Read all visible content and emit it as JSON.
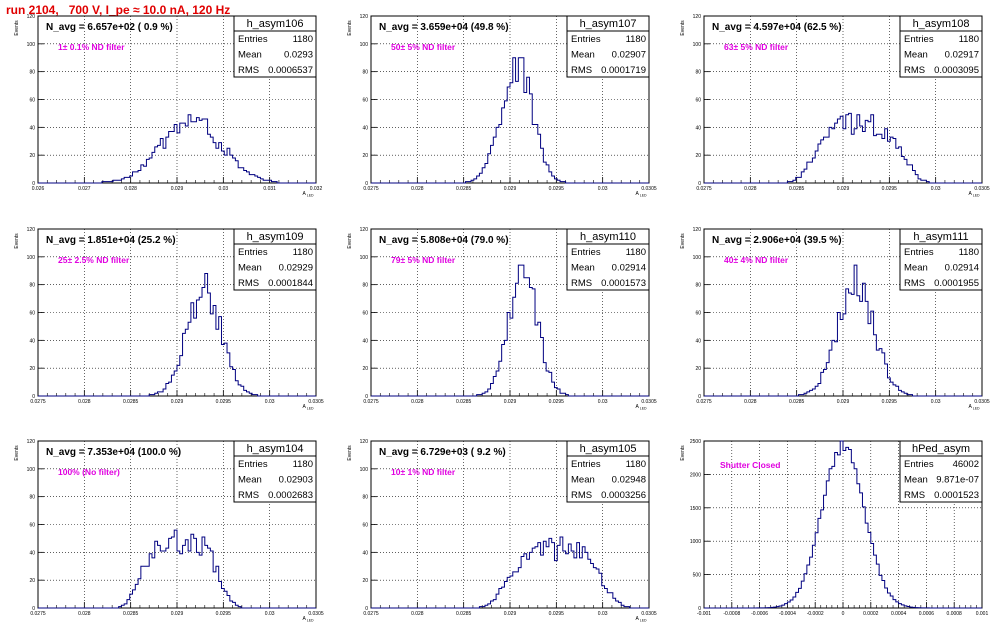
{
  "header": {
    "title": "run 2104,   700 V, I_pe ≈ 10.0 nA, 120 Hz"
  },
  "colors": {
    "title": "#e00000",
    "annotation": "#e000e0",
    "histogram_line": "#000080",
    "grid": "#000000"
  },
  "chart_data": [
    {
      "type": "bar",
      "histogram": true,
      "title": "h_asym106",
      "ylabel": "Events",
      "xlabel": "A_LED",
      "avg_label": "N_avg = 6.657e+02 ( 0.9 %)",
      "filter_label": "1± 0.1% ND filter",
      "stats": {
        "entries": "1180",
        "mean": "0.0293",
        "rms": "0.0006537"
      },
      "xlim": [
        0.026,
        0.032
      ],
      "ylim": [
        0,
        120
      ],
      "xticks": [
        "0.026",
        "0.027",
        "0.028",
        "0.029",
        "0.03",
        "0.031",
        "0.032"
      ],
      "yticks": [
        "0",
        "20",
        "40",
        "60",
        "80",
        "100",
        "120"
      ],
      "dist": {
        "mean": 0.0293,
        "sigma": 0.00065,
        "peak": 45,
        "bins": 100,
        "shape": "broad"
      },
      "legend": "top-right"
    },
    {
      "type": "bar",
      "histogram": true,
      "title": "h_asym107",
      "ylabel": "Events",
      "xlabel": "A_LED",
      "avg_label": "N_avg = 3.659e+04 (49.8 %)",
      "filter_label": "50± 5% ND filter",
      "stats": {
        "entries": "1180",
        "mean": "0.02907",
        "rms": "0.0001719"
      },
      "xlim": [
        0.0275,
        0.0305
      ],
      "ylim": [
        0,
        120
      ],
      "xticks": [
        "0.0275",
        "0.028",
        "0.0285",
        "0.029",
        "0.0295",
        "0.03",
        "0.0305"
      ],
      "yticks": [
        "0",
        "20",
        "40",
        "60",
        "80",
        "100",
        "120"
      ],
      "dist": {
        "mean": 0.02907,
        "sigma": 0.000172,
        "peak": 84,
        "bins": 100,
        "shape": "gauss"
      },
      "legend": "top-right"
    },
    {
      "type": "bar",
      "histogram": true,
      "title": "h_asym108",
      "ylabel": "Events",
      "xlabel": "A_LED",
      "avg_label": "N_avg = 4.597e+04 (62.5 %)",
      "filter_label": "63± 5% ND filter",
      "stats": {
        "entries": "1180",
        "mean": "0.02917",
        "rms": "0.0003095"
      },
      "xlim": [
        0.0275,
        0.0305
      ],
      "ylim": [
        0,
        120
      ],
      "xticks": [
        "0.0275",
        "0.028",
        "0.0285",
        "0.029",
        "0.0295",
        "0.03",
        "0.0305"
      ],
      "yticks": [
        "0",
        "20",
        "40",
        "60",
        "80",
        "100",
        "120"
      ],
      "dist": {
        "mean": 0.02917,
        "sigma": 0.00031,
        "peak": 42,
        "bins": 100,
        "shape": "flat"
      },
      "legend": "top-right"
    },
    {
      "type": "bar",
      "histogram": true,
      "title": "h_asym109",
      "ylabel": "Events",
      "xlabel": "A_LED",
      "avg_label": "N_avg = 1.851e+04 (25.2 %)",
      "filter_label": "25± 2.5% ND filter",
      "stats": {
        "entries": "1180",
        "mean": "0.02929",
        "rms": "0.0001844"
      },
      "xlim": [
        0.0275,
        0.0305
      ],
      "ylim": [
        0,
        120
      ],
      "xticks": [
        "0.0275",
        "0.028",
        "0.0285",
        "0.029",
        "0.0295",
        "0.03",
        "0.0305"
      ],
      "yticks": [
        "0",
        "20",
        "40",
        "60",
        "80",
        "100",
        "120"
      ],
      "dist": {
        "mean": 0.02929,
        "sigma": 0.000184,
        "peak": 78,
        "bins": 100,
        "shape": "gauss"
      },
      "legend": "top-right"
    },
    {
      "type": "bar",
      "histogram": true,
      "title": "h_asym110",
      "ylabel": "Events",
      "xlabel": "A_LED",
      "avg_label": "N_avg = 5.808e+04 (79.0 %)",
      "filter_label": "79± 5% ND filter",
      "stats": {
        "entries": "1180",
        "mean": "0.02914",
        "rms": "0.0001573"
      },
      "xlim": [
        0.0275,
        0.0305
      ],
      "ylim": [
        0,
        120
      ],
      "xticks": [
        "0.0275",
        "0.028",
        "0.0285",
        "0.029",
        "0.0295",
        "0.03",
        "0.0305"
      ],
      "yticks": [
        "0",
        "20",
        "40",
        "60",
        "80",
        "100",
        "120"
      ],
      "dist": {
        "mean": 0.02914,
        "sigma": 0.000157,
        "peak": 86,
        "bins": 100,
        "shape": "gauss"
      },
      "legend": "top-right"
    },
    {
      "type": "bar",
      "histogram": true,
      "title": "h_asym111",
      "ylabel": "Events",
      "xlabel": "A_LED",
      "avg_label": "N_avg = 2.906e+04 (39.5 %)",
      "filter_label": "40± 4% ND filter",
      "stats": {
        "entries": "1180",
        "mean": "0.02914",
        "rms": "0.0001955"
      },
      "xlim": [
        0.0275,
        0.0305
      ],
      "ylim": [
        0,
        120
      ],
      "xticks": [
        "0.0275",
        "0.028",
        "0.0285",
        "0.029",
        "0.0295",
        "0.03",
        "0.0305"
      ],
      "yticks": [
        "0",
        "20",
        "40",
        "60",
        "80",
        "100",
        "120"
      ],
      "dist": {
        "mean": 0.02914,
        "sigma": 0.000196,
        "peak": 80,
        "bins": 100,
        "shape": "gauss"
      },
      "legend": "top-right"
    },
    {
      "type": "bar",
      "histogram": true,
      "title": "h_asym104",
      "ylabel": "Events",
      "xlabel": "A_LED",
      "avg_label": "N_avg = 7.353e+04 (100.0 %)",
      "filter_label": "100% (No filter)",
      "stats": {
        "entries": "1180",
        "mean": "0.02903",
        "rms": "0.0002683"
      },
      "xlim": [
        0.0275,
        0.0305
      ],
      "ylim": [
        0,
        120
      ],
      "xticks": [
        "0.0275",
        "0.028",
        "0.0285",
        "0.029",
        "0.0295",
        "0.03",
        "0.0305"
      ],
      "yticks": [
        "0",
        "20",
        "40",
        "60",
        "80",
        "100",
        "120"
      ],
      "dist": {
        "mean": 0.02903,
        "sigma": 0.00027,
        "peak": 48,
        "bins": 100,
        "shape": "flat"
      },
      "legend": "top-right"
    },
    {
      "type": "bar",
      "histogram": true,
      "title": "h_asym105",
      "ylabel": "Events",
      "xlabel": "A_LED",
      "avg_label": "N_avg = 6.729e+03 ( 9.2 %)",
      "filter_label": "10± 1% ND filter",
      "stats": {
        "entries": "1180",
        "mean": "0.02948",
        "rms": "0.0003256"
      },
      "xlim": [
        0.0275,
        0.0305
      ],
      "ylim": [
        0,
        120
      ],
      "xticks": [
        "0.0275",
        "0.028",
        "0.0285",
        "0.029",
        "0.0295",
        "0.03",
        "0.0305"
      ],
      "yticks": [
        "0",
        "20",
        "40",
        "60",
        "80",
        "100",
        "120"
      ],
      "dist": {
        "mean": 0.02948,
        "sigma": 0.00033,
        "peak": 42,
        "bins": 100,
        "shape": "flat"
      },
      "legend": "top-right"
    },
    {
      "type": "bar",
      "histogram": true,
      "title": "hPed_asym",
      "ylabel": "Events",
      "xlabel": "",
      "avg_label": "",
      "filter_label": "Shutter Closed",
      "stats": {
        "entries": "46002",
        "mean": "9.871e-07",
        "rms": "0.0001523"
      },
      "xlim": [
        -0.001,
        0.001
      ],
      "ylim": [
        0,
        2500
      ],
      "xticks": [
        "-0.001",
        "-0.0008",
        "-0.0006",
        "-0.0004",
        "-0.0002",
        "0",
        "0.0002",
        "0.0004",
        "0.0006",
        "0.0008",
        "0.001"
      ],
      "yticks": [
        "0",
        "500",
        "1000",
        "1500",
        "2000",
        "2500"
      ],
      "dist": {
        "mean": 9.871e-07,
        "sigma": 0.000152,
        "peak": 2430,
        "bins": 100,
        "shape": "gauss"
      },
      "legend": "top-right"
    }
  ]
}
